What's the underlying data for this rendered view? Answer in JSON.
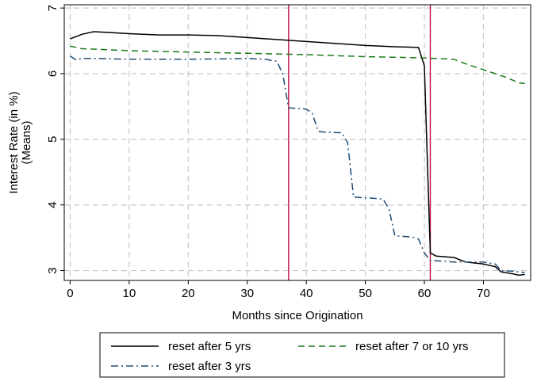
{
  "chart_data": {
    "type": "line",
    "title": "",
    "xlabel": "Months since Origination",
    "ylabel_lines": [
      "Interest Rate (in %)",
      "(Means)"
    ],
    "xlim": [
      -1,
      78
    ],
    "ylim": [
      2.85,
      7.05
    ],
    "xticks": [
      0,
      10,
      20,
      30,
      40,
      50,
      60,
      70
    ],
    "yticks": [
      3,
      4,
      5,
      6,
      7
    ],
    "grid": true,
    "legend_position": "bottom",
    "vertical_lines": [
      {
        "x": 37,
        "color": "#c0103e"
      },
      {
        "x": 61,
        "color": "#c0103e"
      }
    ],
    "series": [
      {
        "name": "reset after 5 yrs",
        "color": "#000000",
        "dash": "solid",
        "x": [
          0,
          2,
          4,
          6,
          10,
          15,
          20,
          25,
          30,
          35,
          40,
          45,
          50,
          55,
          59,
          60,
          60.5,
          61,
          62,
          65,
          67,
          70,
          72,
          73,
          75,
          76,
          77
        ],
        "y": [
          6.53,
          6.6,
          6.64,
          6.63,
          6.61,
          6.59,
          6.59,
          6.58,
          6.55,
          6.52,
          6.49,
          6.46,
          6.43,
          6.41,
          6.4,
          6.12,
          4.7,
          3.27,
          3.22,
          3.2,
          3.13,
          3.1,
          3.06,
          2.98,
          2.95,
          2.93,
          2.94
        ]
      },
      {
        "name": "reset after 7 or 10 yrs",
        "color": "#1a7a1a",
        "dash": "dashed",
        "x": [
          0,
          2,
          5,
          10,
          15,
          20,
          30,
          40,
          50,
          60,
          65,
          67,
          70,
          72,
          74,
          76,
          77
        ],
        "y": [
          6.42,
          6.38,
          6.37,
          6.35,
          6.34,
          6.33,
          6.31,
          6.29,
          6.26,
          6.24,
          6.22,
          6.15,
          6.06,
          6.0,
          5.94,
          5.86,
          5.85
        ]
      },
      {
        "name": "reset after 3 yrs",
        "color": "#1f4e79",
        "dash": "dashdot",
        "x": [
          0,
          1,
          2,
          5,
          10,
          20,
          30,
          33,
          35,
          36,
          37,
          40,
          41,
          42,
          43,
          46,
          47,
          48,
          50,
          53,
          54,
          55,
          58,
          59,
          60,
          61,
          62,
          65,
          70,
          72,
          73,
          75,
          77
        ],
        "y": [
          6.27,
          6.21,
          6.23,
          6.23,
          6.22,
          6.22,
          6.23,
          6.22,
          6.19,
          6.0,
          5.48,
          5.46,
          5.4,
          5.12,
          5.11,
          5.1,
          4.95,
          4.12,
          4.11,
          4.09,
          3.94,
          3.53,
          3.51,
          3.48,
          3.27,
          3.15,
          3.15,
          3.13,
          3.13,
          3.1,
          3.0,
          2.99,
          2.97
        ]
      }
    ]
  }
}
